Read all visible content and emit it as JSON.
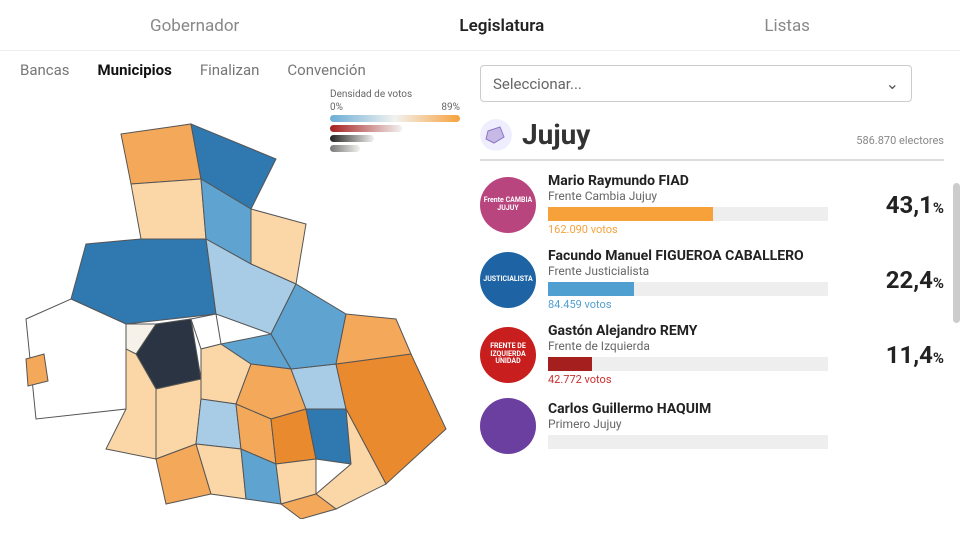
{
  "topTabs": {
    "gobernador": "Gobernador",
    "legislatura": "Legislatura",
    "listas": "Listas",
    "activeIndex": 1
  },
  "subTabs": {
    "bancas": "Bancas",
    "municipios": "Municipios",
    "finalizan": "Finalizan",
    "convencion": "Convención",
    "activeIndex": 1
  },
  "legend": {
    "title": "Densidad de votos",
    "min": "0%",
    "max": "89%",
    "bars": [
      {
        "width": 130,
        "gradient": [
          "#6badd6",
          "#f2f2f0",
          "#f7a13b"
        ]
      },
      {
        "width": 72,
        "gradient": [
          "#a51f1f",
          "#f2f2f0"
        ]
      },
      {
        "width": 44,
        "gradient": [
          "#222222",
          "#f2f2f0"
        ]
      },
      {
        "width": 30,
        "gradient": [
          "#777777",
          "#f2f2f0"
        ]
      }
    ]
  },
  "select": {
    "placeholder": "Seleccionar..."
  },
  "province": {
    "name": "Jujuy",
    "electores": "586.870 electores"
  },
  "results": [
    {
      "candidate": "Mario Raymundo FIAD",
      "party": "Frente Cambia Jujuy",
      "pct": "43,1",
      "votes": "162.090 votos",
      "barWidth": 165,
      "color": "#f7a13b",
      "votesColor": "#f7a13b",
      "badgeBg": "#b9457f",
      "badgeText": "Frente CAMBIA JUJUY"
    },
    {
      "candidate": "Facundo Manuel FIGUEROA CABALLERO",
      "party": "Frente Justicialista",
      "pct": "22,4",
      "votes": "84.459 votos",
      "barWidth": 86,
      "color": "#4f9fd0",
      "votesColor": "#4f9fd0",
      "badgeBg": "#1e63a3",
      "badgeText": "JUSTICIALISTA"
    },
    {
      "candidate": "Gastón Alejandro REMY",
      "party": "Frente de Izquierda",
      "pct": "11,4",
      "votes": "42.772 votos",
      "barWidth": 44,
      "color": "#a51f1f",
      "votesColor": "#c93030",
      "badgeBg": "#c81e1e",
      "badgeText": "FRENTE DE IZQUIERDA UNIDAD"
    },
    {
      "candidate": "Carlos Guillermo HAQUIM",
      "party": "Primero Jujuy",
      "pct": "",
      "votes": "",
      "barWidth": 0,
      "color": "#6b3fa0",
      "votesColor": "#6b3fa0",
      "badgeBg": "#6b3fa0",
      "badgeText": ""
    }
  ],
  "mapColors": {
    "orangeDark": "#ea8a2e",
    "orange": "#f4a85a",
    "orangeLight": "#fbd7a8",
    "blueDark": "#2f78b0",
    "blue": "#5fa3d0",
    "blueLight": "#a9cce6",
    "nearWhite": "#f6f2ea",
    "darkNavy": "#2a3442",
    "white": "#ffffff"
  }
}
